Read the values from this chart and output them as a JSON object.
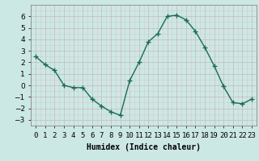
{
  "x": [
    0,
    1,
    2,
    3,
    4,
    5,
    6,
    7,
    8,
    9,
    10,
    11,
    12,
    13,
    14,
    15,
    16,
    17,
    18,
    19,
    20,
    21,
    22,
    23
  ],
  "y": [
    2.5,
    1.8,
    1.3,
    0.0,
    -0.2,
    -0.2,
    -1.2,
    -1.8,
    -2.3,
    -2.6,
    0.4,
    2.0,
    3.8,
    4.5,
    6.0,
    6.1,
    5.7,
    4.7,
    3.3,
    1.7,
    -0.1,
    -1.5,
    -1.6,
    -1.2
  ],
  "line_color": "#1a6b5a",
  "marker": "+",
  "bg_color": "#cce8e5",
  "grid_major_color": "#b8d8d4",
  "grid_minor_color": "#d4ecea",
  "xlabel": "Humidex (Indice chaleur)",
  "xlim": [
    -0.5,
    23.5
  ],
  "ylim": [
    -3.5,
    7.0
  ],
  "yticks": [
    -3,
    -2,
    -1,
    0,
    1,
    2,
    3,
    4,
    5,
    6
  ],
  "xtick_labels": [
    "0",
    "1",
    "2",
    "3",
    "4",
    "5",
    "6",
    "7",
    "8",
    "9",
    "10",
    "11",
    "12",
    "13",
    "14",
    "15",
    "16",
    "17",
    "18",
    "19",
    "20",
    "21",
    "22",
    "23"
  ],
  "label_fontsize": 7,
  "tick_fontsize": 6.5
}
